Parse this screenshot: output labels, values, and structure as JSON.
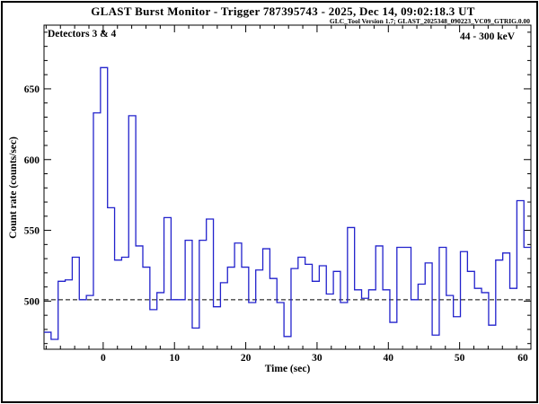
{
  "window": {
    "background": "#ffffff",
    "border_color": "#000000"
  },
  "header": {
    "title": "GLAST Burst Monitor  -  Trigger 787395743  -  2025, Dec 14, 09:02:18.3 UT",
    "subtitle": "GLC_Tool Version 1.7; GLAST_2025348_090223_VC09_GTRIG.0.00"
  },
  "plot": {
    "detectors_label": "Detectors 3 & 4",
    "energy_range_label": "44 - 300 keV",
    "xlabel": "Time (sec)",
    "ylabel": "Count rate (counts/sec)"
  },
  "chart_data": {
    "type": "line",
    "subtype": "step-histogram-lightcurve",
    "title": "GLAST Burst Monitor  -  Trigger 787395743  -  2025, Dec 14, 09:02:18.3 UT",
    "xlabel": "Time (sec)",
    "ylabel": "Count rate (counts/sec)",
    "xlim": [
      -8.3,
      60
    ],
    "ylim": [
      466,
      695
    ],
    "xticks_major": [
      0,
      10,
      20,
      30,
      40,
      50,
      60
    ],
    "yticks_major": [
      500,
      550,
      600,
      650
    ],
    "x_minor_step": 2,
    "y_minor_step": 10,
    "grid": false,
    "baseline": 501,
    "baseline_style": "dashed",
    "line_color": "#2222cc",
    "bin_start": -8.3,
    "bin_width": 0.99,
    "values": [
      478,
      473,
      514,
      515,
      531,
      501,
      504,
      633,
      665,
      566,
      529,
      531,
      631,
      539,
      524,
      494,
      506,
      559,
      501,
      501,
      543,
      481,
      543,
      558,
      496,
      513,
      524,
      541,
      524,
      499,
      522,
      537,
      516,
      499,
      475,
      523,
      531,
      526,
      514,
      525,
      505,
      521,
      499,
      552,
      508,
      502,
      508,
      539,
      508,
      485,
      538,
      538,
      501,
      512,
      527,
      476,
      538,
      504,
      489,
      535,
      521,
      509,
      506,
      483,
      529,
      534,
      509,
      571,
      538
    ],
    "peak_value": 665,
    "peak_time": 0
  }
}
